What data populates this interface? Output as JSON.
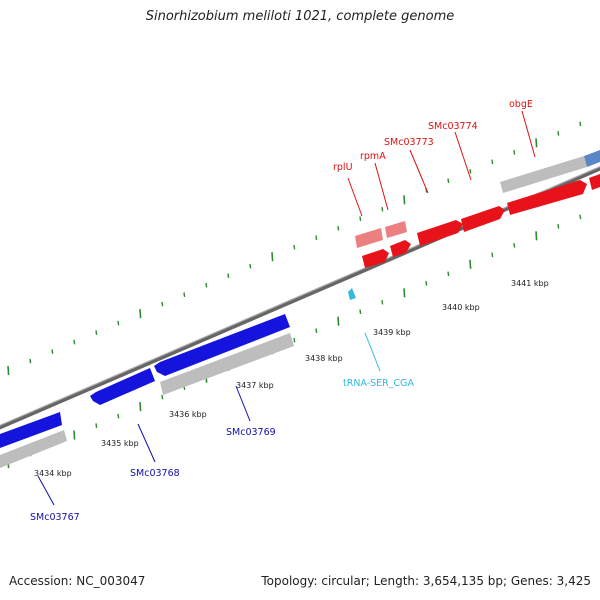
{
  "title": "Sinorhizobium meliloti 1021, complete genome",
  "footer": {
    "accession": "Accession: NC_003047",
    "summary": "Topology: circular; Length: 3,654,135 bp; Genes: 3,425"
  },
  "colors": {
    "forward_cds": "#e8121a",
    "forward_cds_light": "#ec7f7f",
    "reverse_cds": "#1414dd",
    "gene_gray": "#bdbdbd",
    "trna": "#33bbdd",
    "backbone": "#888888",
    "tick": "#2e8b2e"
  },
  "scale": {
    "ticks_kbp": [
      "3434 kbp",
      "3435 kbp",
      "3436 kbp",
      "3437 kbp",
      "3438 kbp",
      "3439 kbp",
      "3440 kbp",
      "3441 kbp"
    ]
  },
  "genes": [
    {
      "name": "rplU",
      "strand": "+"
    },
    {
      "name": "rpmA",
      "strand": "+"
    },
    {
      "name": "SMc03773",
      "strand": "+"
    },
    {
      "name": "SMc03774",
      "strand": "+"
    },
    {
      "name": "obgE",
      "strand": "+"
    },
    {
      "name": "SMc03767",
      "strand": "-"
    },
    {
      "name": "SMc03768",
      "strand": "-"
    },
    {
      "name": "SMc03769",
      "strand": "-"
    },
    {
      "name": "tRNA-SER_CGA",
      "strand": "-"
    }
  ]
}
